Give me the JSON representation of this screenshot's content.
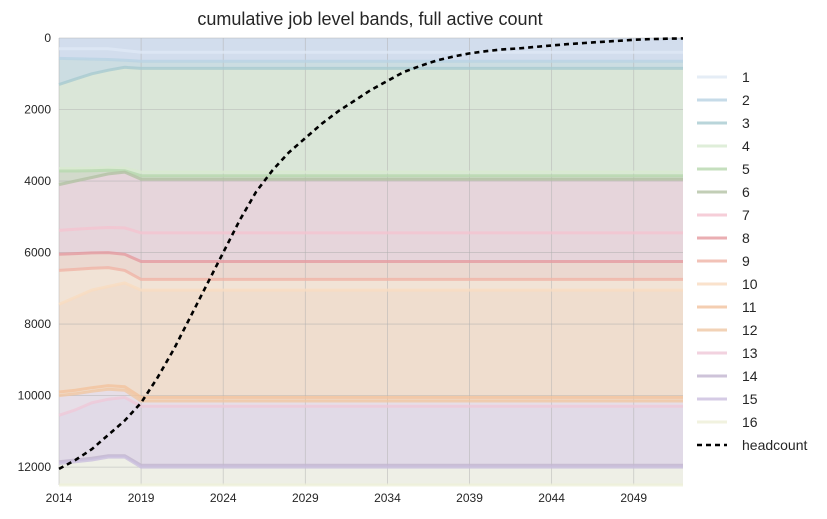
{
  "chart_data": {
    "type": "area",
    "title": "cumulative job level bands, full active count",
    "xlabel": "",
    "ylabel": "",
    "x": [
      2014,
      2015,
      2016,
      2017,
      2018,
      2019,
      2020,
      2021,
      2022,
      2023,
      2024,
      2025,
      2026,
      2027,
      2028,
      2029,
      2030,
      2031,
      2032,
      2033,
      2034,
      2035,
      2036,
      2037,
      2038,
      2039,
      2040,
      2041,
      2042,
      2043,
      2044,
      2045,
      2046,
      2047,
      2048,
      2049,
      2050,
      2051,
      2052
    ],
    "xlim": [
      2014,
      2052
    ],
    "ylim": [
      12500,
      0
    ],
    "y_inverted": true,
    "xticks": [
      2014,
      2019,
      2024,
      2029,
      2034,
      2039,
      2044,
      2049
    ],
    "yticks": [
      0,
      2000,
      4000,
      6000,
      8000,
      10000,
      12000
    ],
    "grid": true,
    "legend_position": "right",
    "band_colors": [
      "#dfe9f5",
      "#b9d3e3",
      "#a8cbd1",
      "#d8ead0",
      "#b7d8ae",
      "#b3c2a4",
      "#f4c3cf",
      "#e59ba0",
      "#f0b4a6",
      "#f9dcc0",
      "#f2c39e",
      "#f0c7a4",
      "#efc8d8",
      "#c2b5d0",
      "#cbbfdf",
      "#eef0d8"
    ],
    "band_fill_colors": [
      "#cfdcec",
      "#cfdcec",
      "#c9dbe0",
      "#d8e5d5",
      "#d8e5d5",
      "#cfd8c6",
      "#e6d3d8",
      "#e6d3d8",
      "#ebd6cc",
      "#f2e2d3",
      "#efdcca",
      "#efdcca",
      "#e5dde5",
      "#e0d8e5",
      "#e0d8e5",
      "#eef0e4"
    ],
    "series": [
      {
        "name": "1",
        "values": [
          300,
          300,
          300,
          300,
          350,
          400,
          400,
          400,
          400,
          400,
          400,
          400,
          400,
          400,
          400,
          400,
          400,
          400,
          400,
          400,
          400,
          400,
          400,
          400,
          400,
          400,
          400,
          400,
          400,
          400,
          400,
          400,
          400,
          400,
          400,
          400,
          400,
          400,
          400
        ]
      },
      {
        "name": "2",
        "values": [
          570,
          580,
          590,
          600,
          620,
          650,
          650,
          650,
          650,
          650,
          650,
          650,
          650,
          650,
          650,
          650,
          650,
          650,
          650,
          650,
          650,
          650,
          650,
          650,
          650,
          650,
          650,
          650,
          650,
          650,
          650,
          650,
          650,
          650,
          650,
          650,
          650,
          650,
          650
        ]
      },
      {
        "name": "3",
        "values": [
          1300,
          1150,
          1000,
          900,
          820,
          850,
          850,
          850,
          850,
          850,
          850,
          850,
          850,
          850,
          850,
          850,
          850,
          850,
          850,
          850,
          850,
          850,
          850,
          850,
          850,
          850,
          850,
          850,
          850,
          850,
          850,
          850,
          850,
          850,
          850,
          850,
          850,
          850,
          850
        ]
      },
      {
        "name": "4",
        "values": [
          3650,
          3650,
          3640,
          3630,
          3640,
          3750,
          3750,
          3750,
          3750,
          3750,
          3750,
          3750,
          3750,
          3750,
          3750,
          3750,
          3750,
          3750,
          3750,
          3750,
          3750,
          3750,
          3750,
          3750,
          3750,
          3750,
          3750,
          3750,
          3750,
          3750,
          3750,
          3750,
          3750,
          3750,
          3750,
          3750,
          3750,
          3750,
          3750
        ]
      },
      {
        "name": "5",
        "values": [
          3720,
          3720,
          3710,
          3700,
          3710,
          3850,
          3850,
          3850,
          3850,
          3850,
          3850,
          3850,
          3850,
          3850,
          3850,
          3850,
          3850,
          3850,
          3850,
          3850,
          3850,
          3850,
          3850,
          3850,
          3850,
          3850,
          3850,
          3850,
          3850,
          3850,
          3850,
          3850,
          3850,
          3850,
          3850,
          3850,
          3850,
          3850,
          3850
        ]
      },
      {
        "name": "6",
        "values": [
          4100,
          4000,
          3900,
          3800,
          3750,
          3950,
          3950,
          3950,
          3950,
          3950,
          3950,
          3950,
          3950,
          3950,
          3950,
          3950,
          3950,
          3950,
          3950,
          3950,
          3950,
          3950,
          3950,
          3950,
          3950,
          3950,
          3950,
          3950,
          3950,
          3950,
          3950,
          3950,
          3950,
          3950,
          3950,
          3950,
          3950,
          3950,
          3950
        ]
      },
      {
        "name": "7",
        "values": [
          5380,
          5350,
          5320,
          5300,
          5310,
          5450,
          5450,
          5450,
          5450,
          5450,
          5450,
          5450,
          5450,
          5450,
          5450,
          5450,
          5450,
          5450,
          5450,
          5450,
          5450,
          5450,
          5450,
          5450,
          5450,
          5450,
          5450,
          5450,
          5450,
          5450,
          5450,
          5450,
          5450,
          5450,
          5450,
          5450,
          5450,
          5450,
          5450
        ]
      },
      {
        "name": "8",
        "values": [
          6050,
          6030,
          6010,
          6000,
          6050,
          6250,
          6250,
          6250,
          6250,
          6250,
          6250,
          6250,
          6250,
          6250,
          6250,
          6250,
          6250,
          6250,
          6250,
          6250,
          6250,
          6250,
          6250,
          6250,
          6250,
          6250,
          6250,
          6250,
          6250,
          6250,
          6250,
          6250,
          6250,
          6250,
          6250,
          6250,
          6250,
          6250,
          6250
        ]
      },
      {
        "name": "9",
        "values": [
          6500,
          6470,
          6440,
          6420,
          6500,
          6750,
          6750,
          6750,
          6750,
          6750,
          6750,
          6750,
          6750,
          6750,
          6750,
          6750,
          6750,
          6750,
          6750,
          6750,
          6750,
          6750,
          6750,
          6750,
          6750,
          6750,
          6750,
          6750,
          6750,
          6750,
          6750,
          6750,
          6750,
          6750,
          6750,
          6750,
          6750,
          6750,
          6750
        ]
      },
      {
        "name": "10",
        "values": [
          7450,
          7250,
          7050,
          6950,
          6850,
          7050,
          7050,
          7050,
          7050,
          7050,
          7050,
          7050,
          7050,
          7050,
          7050,
          7050,
          7050,
          7050,
          7050,
          7050,
          7050,
          7050,
          7050,
          7050,
          7050,
          7050,
          7050,
          7050,
          7050,
          7050,
          7050,
          7050,
          7050,
          7050,
          7050,
          7050,
          7050,
          7050,
          7050
        ]
      },
      {
        "name": "11",
        "values": [
          9900,
          9850,
          9780,
          9720,
          9750,
          10050,
          10050,
          10050,
          10050,
          10050,
          10050,
          10050,
          10050,
          10050,
          10050,
          10050,
          10050,
          10050,
          10050,
          10050,
          10050,
          10050,
          10050,
          10050,
          10050,
          10050,
          10050,
          10050,
          10050,
          10050,
          10050,
          10050,
          10050,
          10050,
          10050,
          10050,
          10050,
          10050,
          10050
        ]
      },
      {
        "name": "12",
        "values": [
          10000,
          9950,
          9880,
          9820,
          9850,
          10150,
          10150,
          10150,
          10150,
          10150,
          10150,
          10150,
          10150,
          10150,
          10150,
          10150,
          10150,
          10150,
          10150,
          10150,
          10150,
          10150,
          10150,
          10150,
          10150,
          10150,
          10150,
          10150,
          10150,
          10150,
          10150,
          10150,
          10150,
          10150,
          10150,
          10150,
          10150,
          10150,
          10150
        ]
      },
      {
        "name": "13",
        "values": [
          10550,
          10400,
          10200,
          10100,
          10050,
          10300,
          10300,
          10300,
          10300,
          10300,
          10300,
          10300,
          10300,
          10300,
          10300,
          10300,
          10300,
          10300,
          10300,
          10300,
          10300,
          10300,
          10300,
          10300,
          10300,
          10300,
          10300,
          10300,
          10300,
          10300,
          10300,
          10300,
          10300,
          10300,
          10300,
          10300,
          10300,
          10300,
          10300
        ]
      },
      {
        "name": "14",
        "values": [
          11850,
          11800,
          11750,
          11680,
          11680,
          11950,
          11950,
          11950,
          11950,
          11950,
          11950,
          11950,
          11950,
          11950,
          11950,
          11950,
          11950,
          11950,
          11950,
          11950,
          11950,
          11950,
          11950,
          11950,
          11950,
          11950,
          11950,
          11950,
          11950,
          11950,
          11950,
          11950,
          11950,
          11950,
          11950,
          11950,
          11950,
          11950,
          11950
        ]
      },
      {
        "name": "15",
        "values": [
          11900,
          11850,
          11800,
          11720,
          11720,
          12000,
          12000,
          12000,
          12000,
          12000,
          12000,
          12000,
          12000,
          12000,
          12000,
          12000,
          12000,
          12000,
          12000,
          12000,
          12000,
          12000,
          12000,
          12000,
          12000,
          12000,
          12000,
          12000,
          12000,
          12000,
          12000,
          12000,
          12000,
          12000,
          12000,
          12000,
          12000,
          12000,
          12000
        ]
      },
      {
        "name": "16",
        "values": [
          12500,
          12500,
          12500,
          12500,
          12500,
          12500,
          12500,
          12500,
          12500,
          12500,
          12500,
          12500,
          12500,
          12500,
          12500,
          12500,
          12500,
          12500,
          12500,
          12500,
          12500,
          12500,
          12500,
          12500,
          12500,
          12500,
          12500,
          12500,
          12500,
          12500,
          12500,
          12500,
          12500,
          12500,
          12500,
          12500,
          12500,
          12500,
          12500
        ]
      }
    ],
    "headcount": {
      "name": "headcount",
      "style": "dashed",
      "color": "#000000",
      "values": [
        12050,
        11800,
        11500,
        11100,
        10700,
        10200,
        9500,
        8700,
        7800,
        6900,
        6000,
        5100,
        4300,
        3700,
        3200,
        2800,
        2400,
        2050,
        1750,
        1450,
        1200,
        950,
        780,
        630,
        520,
        430,
        370,
        320,
        290,
        250,
        210,
        170,
        140,
        110,
        80,
        50,
        30,
        20,
        10
      ]
    }
  }
}
